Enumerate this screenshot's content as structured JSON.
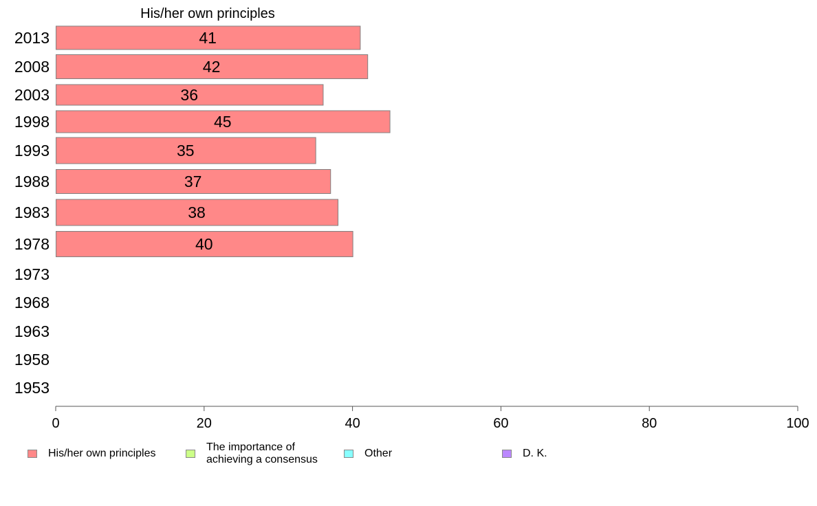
{
  "chart_data": {
    "type": "bar",
    "orientation": "horizontal",
    "title": "His/her own principles",
    "categories": [
      "2013",
      "2008",
      "2003",
      "1998",
      "1993",
      "1988",
      "1983",
      "1978",
      "1973",
      "1968",
      "1963",
      "1958",
      "1953"
    ],
    "series": [
      {
        "name": "His/her own principles",
        "color": "#ff8888",
        "values": [
          41,
          42,
          36,
          45,
          35,
          37,
          38,
          40,
          null,
          null,
          null,
          null,
          null
        ],
        "value_labels": [
          "41",
          "42",
          "36",
          "45",
          "35",
          "37",
          "38",
          "40",
          "",
          "",
          "",
          "",
          ""
        ]
      }
    ],
    "xlim": [
      0,
      100
    ],
    "x_ticks": [
      "0",
      "20",
      "40",
      "60",
      "80",
      "100"
    ],
    "grid": false,
    "legend_position": "bottom"
  },
  "legend": [
    {
      "label": "His/her own principles",
      "color": "#ff8888"
    },
    {
      "label": "The importance of\nachieving a consensus",
      "color": "#ccff88"
    },
    {
      "label": "Other",
      "color": "#88ffff"
    },
    {
      "label": "D. K.",
      "color": "#bb88ff"
    }
  ]
}
